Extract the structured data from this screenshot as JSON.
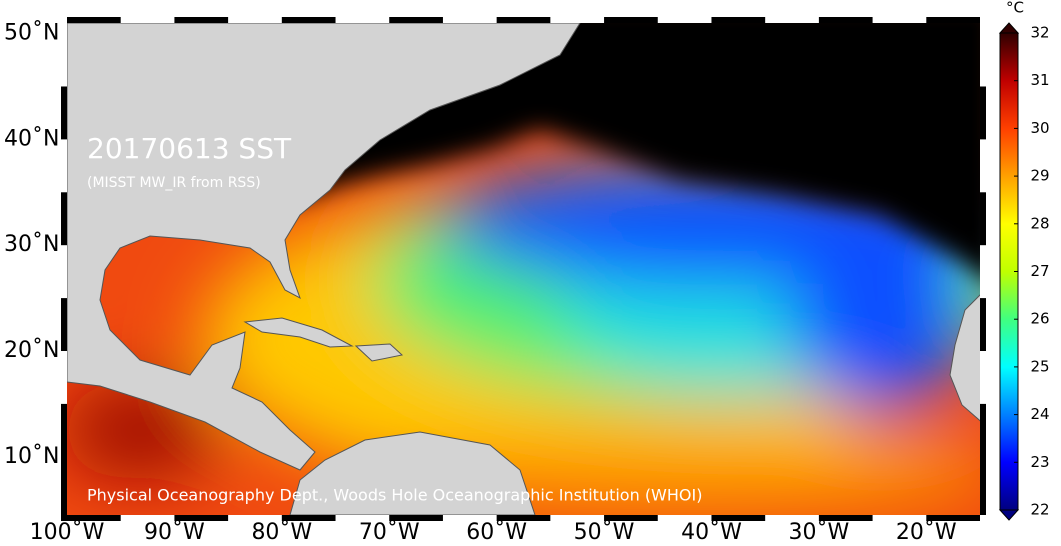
{
  "map": {
    "title": "20170613 SST",
    "subtitle": "(MISST MW_IR from RSS)",
    "credit": "Physical Oceanography Dept., Woods Hole Oceanographic Institution (WHOI)",
    "xlim": [
      -100,
      -15
    ],
    "ylim": [
      4.5,
      51
    ],
    "xticks": [
      {
        "value": -100,
        "label": "100˚W"
      },
      {
        "value": -90,
        "label": "90˚W"
      },
      {
        "value": -80,
        "label": "80˚W"
      },
      {
        "value": -70,
        "label": "70˚W"
      },
      {
        "value": -60,
        "label": "60˚W"
      },
      {
        "value": -50,
        "label": "50˚W"
      },
      {
        "value": -40,
        "label": "40˚W"
      },
      {
        "value": -30,
        "label": "30˚W"
      },
      {
        "value": -20,
        "label": "20˚W"
      }
    ],
    "yticks": [
      {
        "value": 10,
        "label": "10˚N"
      },
      {
        "value": 20,
        "label": "20˚N"
      },
      {
        "value": 30,
        "label": "30˚N"
      },
      {
        "value": 40,
        "label": "40˚N"
      },
      {
        "value": 50,
        "label": "50˚N"
      }
    ],
    "colorbar": {
      "unit": "°C",
      "lim": [
        22,
        32
      ],
      "ticks": [
        22,
        23,
        24,
        25,
        26,
        27,
        28,
        29,
        30,
        31,
        32
      ],
      "colors": [
        "#000080",
        "#0000ff",
        "#0080ff",
        "#00ffff",
        "#40ff80",
        "#c0ff00",
        "#ffff00",
        "#ffa000",
        "#ff4000",
        "#c00000",
        "#300000"
      ]
    }
  }
}
